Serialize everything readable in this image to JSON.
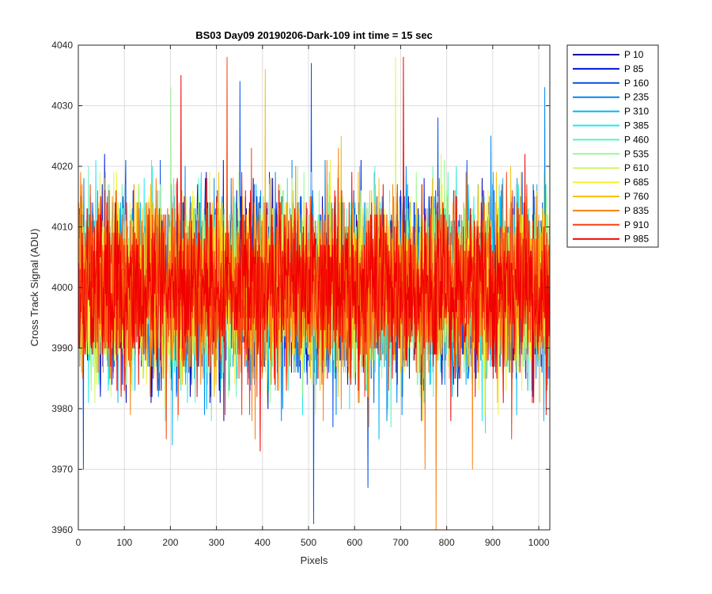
{
  "chart_data": {
    "type": "line",
    "title": "BS03 Day09 20190206-Dark-109 int time = 15 sec",
    "xlabel": "Pixels",
    "ylabel": "Cross Track Signal (ADU)",
    "xlim": [
      0,
      1024
    ],
    "ylim": [
      3960,
      4040
    ],
    "xticks": [
      0,
      100,
      200,
      300,
      400,
      500,
      600,
      700,
      800,
      900,
      1000
    ],
    "yticks": [
      3960,
      3970,
      3980,
      3990,
      4000,
      4010,
      4020,
      4030,
      4040
    ],
    "grid": true,
    "legend_placement": "outside-top-right",
    "signal_mean": 4000,
    "noise_std_approx": 7,
    "series": [
      {
        "name": "P 10",
        "color": "#0000a8"
      },
      {
        "name": "P 85",
        "color": "#0016dc"
      },
      {
        "name": "P 160",
        "color": "#0050e8"
      },
      {
        "name": "P 235",
        "color": "#0088f0"
      },
      {
        "name": "P 310",
        "color": "#00b8f4"
      },
      {
        "name": "P 385",
        "color": "#20e8e8"
      },
      {
        "name": "P 460",
        "color": "#60f0c0"
      },
      {
        "name": "P 535",
        "color": "#98f890"
      },
      {
        "name": "P 610",
        "color": "#d0f860"
      },
      {
        "name": "P 685",
        "color": "#f8f030"
      },
      {
        "name": "P 760",
        "color": "#f8c010"
      },
      {
        "name": "P 835",
        "color": "#f88010"
      },
      {
        "name": "P 910",
        "color": "#f84010"
      },
      {
        "name": "P 985",
        "color": "#f00000"
      }
    ],
    "extremes": [
      {
        "series": "P 835",
        "x": 776,
        "y": 3960
      },
      {
        "series": "P 160",
        "x": 510,
        "y": 3961
      },
      {
        "series": "P 160",
        "x": 628,
        "y": 3967
      },
      {
        "series": "P 160",
        "x": 10,
        "y": 3970
      },
      {
        "series": "P 835",
        "x": 752,
        "y": 3970
      },
      {
        "series": "P 835",
        "x": 855,
        "y": 3970
      },
      {
        "series": "P 910",
        "x": 322,
        "y": 4038
      },
      {
        "series": "P 985",
        "x": 705,
        "y": 4038
      },
      {
        "series": "P 610",
        "x": 688,
        "y": 4038
      },
      {
        "series": "P 160",
        "x": 505,
        "y": 4037
      },
      {
        "series": "P 985",
        "x": 222,
        "y": 4035
      },
      {
        "series": "P 235",
        "x": 1012,
        "y": 4033
      },
      {
        "series": "P 535",
        "x": 200,
        "y": 4033
      },
      {
        "series": "P 160",
        "x": 350,
        "y": 4034
      },
      {
        "series": "P 760",
        "x": 405,
        "y": 4036
      }
    ]
  }
}
